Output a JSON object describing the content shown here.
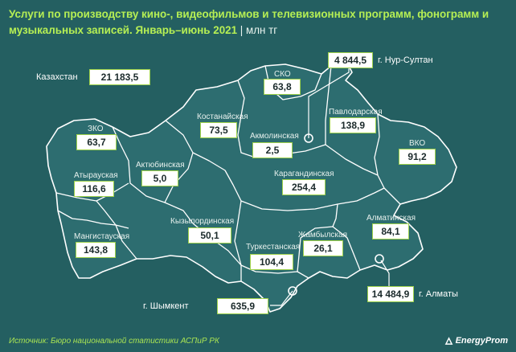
{
  "title": "Услуги по производству кино-, видеофильмов и телевизионных программ, фонограмм и музыкальных записей. Январь–июнь 2021",
  "unit": "| млн тг",
  "source": "Источник: Бюро национальной статистики АСПиР РК",
  "logo": "EnergyProm",
  "total": {
    "label": "Казахстан",
    "value": "21 183,5"
  },
  "regions": [
    {
      "id": "sko",
      "label": "СКО",
      "value": "63,8"
    },
    {
      "id": "nur-sultan",
      "label": "г. Нур-Султан",
      "value": "4 844,5"
    },
    {
      "id": "kostanay",
      "label": "Костанайская",
      "value": "73,5"
    },
    {
      "id": "akmola",
      "label": "Акмолинская",
      "value": "2,5"
    },
    {
      "id": "pavlodar",
      "label": "Павлодарская",
      "value": "138,9"
    },
    {
      "id": "zko",
      "label": "ЗКО",
      "value": "63,7"
    },
    {
      "id": "vko",
      "label": "ВКО",
      "value": "91,2"
    },
    {
      "id": "aktobe",
      "label": "Актюбинская",
      "value": "5,0"
    },
    {
      "id": "atyrau",
      "label": "Атырауская",
      "value": "116,6"
    },
    {
      "id": "karaganda",
      "label": "Карагандинская",
      "value": "254,4"
    },
    {
      "id": "kyzylorda",
      "label": "Кызылординская",
      "value": "50,1"
    },
    {
      "id": "mangystau",
      "label": "Мангистауская",
      "value": "143,8"
    },
    {
      "id": "almaty-obl",
      "label": "Алматинская",
      "value": "84,1"
    },
    {
      "id": "zhambyl",
      "label": "Жамбылская",
      "value": "26,1"
    },
    {
      "id": "turkestan",
      "label": "Туркестанская",
      "value": "104,4"
    },
    {
      "id": "almaty-city",
      "label": "г. Алматы",
      "value": "14 484,9"
    },
    {
      "id": "shymkent",
      "label": "г. Шымкент",
      "value": "635,9"
    }
  ]
}
